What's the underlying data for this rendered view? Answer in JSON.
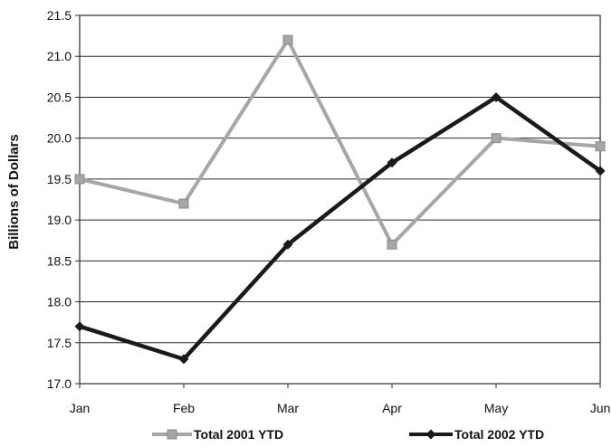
{
  "chart_data": {
    "type": "line",
    "title": "",
    "xlabel": "",
    "ylabel": "Billions of Dollars",
    "categories": [
      "Jan",
      "Feb",
      "Mar",
      "Apr",
      "May",
      "Jun"
    ],
    "ylim": [
      17.0,
      21.5
    ],
    "y_ticks": [
      "21.5",
      "21.0",
      "20.5",
      "20.0",
      "19.5",
      "19.0",
      "18.5",
      "18.0",
      "17.5",
      "17.0"
    ],
    "grid": true,
    "legend_position": "bottom",
    "series": [
      {
        "name": "Total 2001 YTD",
        "values": [
          19.5,
          19.2,
          21.2,
          18.7,
          20.0,
          19.9
        ],
        "color": "#a6a6a6",
        "marker": "square"
      },
      {
        "name": "Total 2002 YTD",
        "values": [
          17.7,
          17.3,
          18.7,
          19.7,
          20.5,
          19.6
        ],
        "color": "#1a1a1a",
        "marker": "diamond"
      }
    ]
  }
}
